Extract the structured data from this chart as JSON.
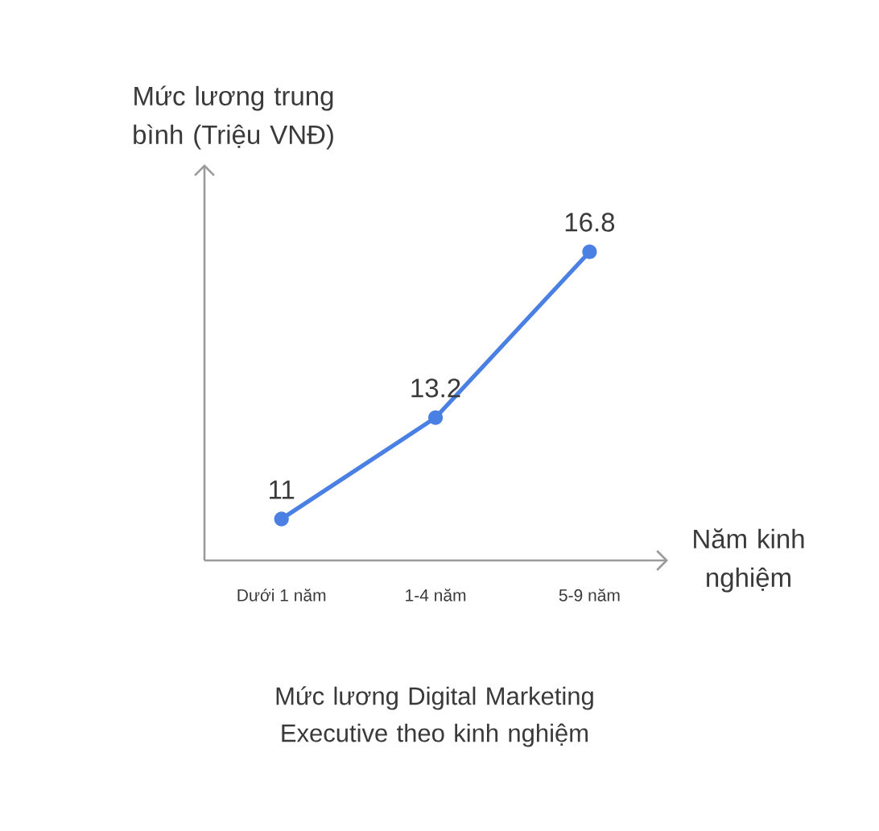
{
  "chart_data": {
    "type": "line",
    "title": "Mức lương Digital Marketing Executive theo kinh nghiệm",
    "xlabel": "Năm kinh nghiệm",
    "ylabel": "Mức lương trung bình (Triệu VNĐ)",
    "categories": [
      "Dưới 1 năm",
      "1-4 năm",
      "5-9 năm"
    ],
    "values": [
      11,
      13.2,
      16.8
    ],
    "color": "#4a80e3",
    "ylim": [
      10.1,
      18.7
    ],
    "data_labels": true,
    "marker": "circle",
    "line_style": "solid",
    "grid": false
  }
}
